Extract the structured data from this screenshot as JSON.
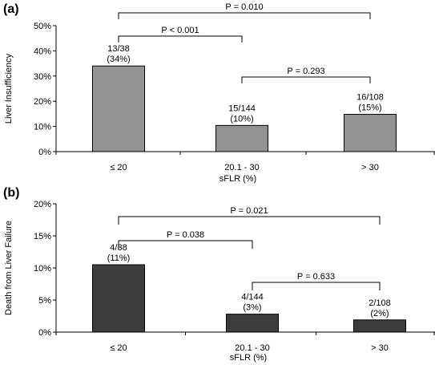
{
  "chart_data": [
    {
      "type": "bar",
      "panel_label": "(a)",
      "categories": [
        "≤ 20",
        "20.1 - 30",
        "> 30"
      ],
      "values": [
        34,
        10.4,
        14.8
      ],
      "bar_color": "#939393",
      "data_labels": [
        {
          "top": "13/38",
          "bottom": "(34%)"
        },
        {
          "top": "15/144",
          "bottom": "(10%)"
        },
        {
          "top": "16/108",
          "bottom": "(15%)"
        }
      ],
      "xlabel": "sFLR (%)",
      "ylabel": "Liver Insufficiency",
      "ylim": [
        0,
        50
      ],
      "yticks": [
        0,
        10,
        20,
        30,
        40,
        50
      ],
      "ytick_labels": [
        "0%",
        "10%",
        "20%",
        "30%",
        "40%",
        "50%"
      ],
      "comparisons": [
        {
          "from": 0,
          "to": 2,
          "label": "P = 0.010"
        },
        {
          "from": 0,
          "to": 1,
          "label": "P < 0.001"
        },
        {
          "from": 1,
          "to": 2,
          "label": "P = 0.293"
        }
      ],
      "grid": false
    },
    {
      "type": "bar",
      "panel_label": "(b)",
      "categories": [
        "≤ 20",
        "20.1 - 30",
        "> 30"
      ],
      "values": [
        10.5,
        2.8,
        1.9
      ],
      "bar_color": "#3c3c3c",
      "data_labels": [
        {
          "top": "4/38",
          "bottom": "(11%)"
        },
        {
          "top": "4/144",
          "bottom": "(3%)"
        },
        {
          "top": "2/108",
          "bottom": "(2%)"
        }
      ],
      "xlabel": "sFLR (%)",
      "ylabel": "Death from Liver Failure",
      "ylim": [
        0,
        20
      ],
      "yticks": [
        0,
        5,
        10,
        15,
        20
      ],
      "ytick_labels": [
        "0%",
        "5%",
        "10%",
        "15%",
        "20%"
      ],
      "comparisons": [
        {
          "from": 0,
          "to": 2,
          "label": "P = 0.021"
        },
        {
          "from": 0,
          "to": 1,
          "label": "P = 0.038"
        },
        {
          "from": 1,
          "to": 2,
          "label": "P = 0.633"
        }
      ],
      "grid": false
    }
  ]
}
